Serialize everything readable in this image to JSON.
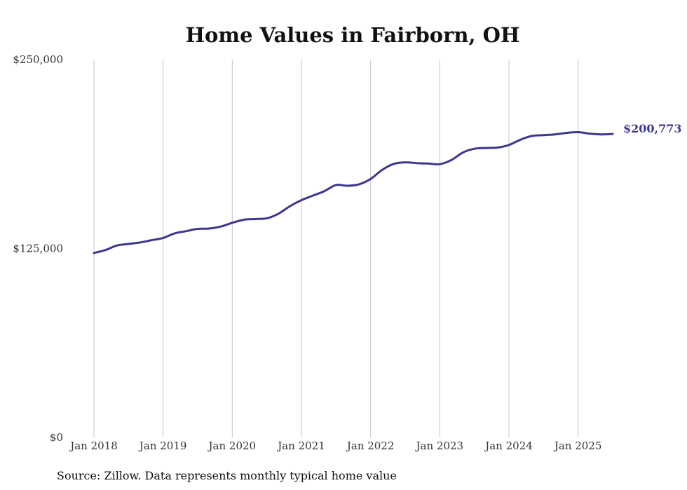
{
  "chart_data": {
    "type": "line",
    "title": "Home Values in Fairborn, OH",
    "source_note": "Source: Zillow. Data represents monthly typical home value",
    "y_ticks": [
      {
        "value": 0,
        "label": "$0"
      },
      {
        "value": 125000,
        "label": "$125,000"
      },
      {
        "value": 250000,
        "label": "$250,000"
      }
    ],
    "x_ticks": [
      {
        "value": "2018-01",
        "label": "Jan 2018"
      },
      {
        "value": "2019-01",
        "label": "Jan 2019"
      },
      {
        "value": "2020-01",
        "label": "Jan 2020"
      },
      {
        "value": "2021-01",
        "label": "Jan 2021"
      },
      {
        "value": "2022-01",
        "label": "Jan 2022"
      },
      {
        "value": "2023-01",
        "label": "Jan 2023"
      },
      {
        "value": "2024-01",
        "label": "Jan 2024"
      },
      {
        "value": "2025-01",
        "label": "Jan 2025"
      }
    ],
    "ylim": [
      0,
      250000
    ],
    "xlim": [
      "2018-01",
      "2025-07"
    ],
    "grid": "vertical",
    "line_color": "#3d3790",
    "end_label": "$200,773",
    "x": [
      "2018-01",
      "2018-03",
      "2018-05",
      "2018-07",
      "2018-09",
      "2018-11",
      "2019-01",
      "2019-03",
      "2019-05",
      "2019-07",
      "2019-09",
      "2019-11",
      "2020-01",
      "2020-03",
      "2020-05",
      "2020-07",
      "2020-09",
      "2020-11",
      "2021-01",
      "2021-03",
      "2021-05",
      "2021-07",
      "2021-09",
      "2021-11",
      "2022-01",
      "2022-03",
      "2022-05",
      "2022-07",
      "2022-09",
      "2022-11",
      "2023-01",
      "2023-03",
      "2023-05",
      "2023-07",
      "2023-09",
      "2023-11",
      "2024-01",
      "2024-03",
      "2024-05",
      "2024-07",
      "2024-09",
      "2024-11",
      "2025-01",
      "2025-03",
      "2025-05",
      "2025-07"
    ],
    "values": [
      122000,
      124000,
      127000,
      128000,
      129000,
      130500,
      132000,
      135000,
      136500,
      138000,
      138200,
      139500,
      142000,
      144000,
      144500,
      145000,
      148000,
      153000,
      157000,
      160000,
      163000,
      167000,
      166500,
      167500,
      171000,
      177000,
      181000,
      182000,
      181500,
      181200,
      180800,
      183500,
      188500,
      191000,
      191500,
      191800,
      193500,
      197000,
      199500,
      200000,
      200500,
      201500,
      202000,
      201000,
      200500,
      200773
    ]
  }
}
